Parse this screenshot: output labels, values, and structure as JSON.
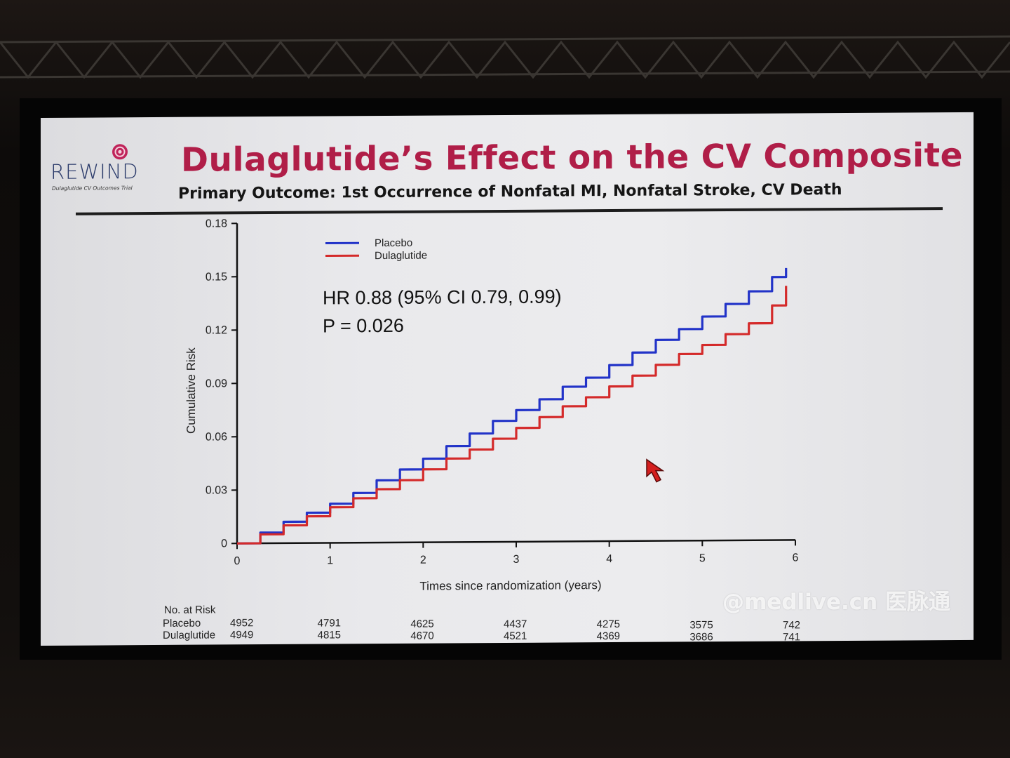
{
  "slide": {
    "logo_name": "REWIND",
    "logo_tagline": "Dulaglutide CV Outcomes Trial",
    "title": "Dulaglutide’s Effect on the CV Composite",
    "subtitle": "Primary Outcome: 1st Occurrence of Nonfatal MI, Nonfatal Stroke, CV Death",
    "stat_hr": "HR 0.88 (95% CI 0.79, 0.99)",
    "stat_p": "P = 0.026"
  },
  "chart_data": {
    "type": "line",
    "title": "",
    "xlabel": "Times since randomization (years)",
    "ylabel": "Cumulative Risk",
    "xlim": [
      0,
      6
    ],
    "ylim": [
      0,
      0.18
    ],
    "x_ticks": [
      "0",
      "1",
      "2",
      "3",
      "4",
      "5",
      "6"
    ],
    "y_ticks": [
      "0",
      "0.03",
      "0.06",
      "0.09",
      "0.12",
      "0.15",
      "0.18"
    ],
    "legend_position": "top-left",
    "series": [
      {
        "name": "Placebo",
        "color": "#2233c8",
        "x": [
          0,
          0.25,
          0.5,
          0.75,
          1,
          1.25,
          1.5,
          1.75,
          2,
          2.25,
          2.5,
          2.75,
          3,
          3.25,
          3.5,
          3.75,
          4,
          4.25,
          4.5,
          4.75,
          5,
          5.25,
          5.5,
          5.75,
          5.9
        ],
        "y": [
          0,
          0.006,
          0.012,
          0.017,
          0.022,
          0.028,
          0.035,
          0.041,
          0.047,
          0.054,
          0.061,
          0.068,
          0.074,
          0.08,
          0.087,
          0.092,
          0.099,
          0.106,
          0.113,
          0.119,
          0.126,
          0.133,
          0.14,
          0.148,
          0.153
        ]
      },
      {
        "name": "Dulaglutide",
        "color": "#d42a2a",
        "x": [
          0,
          0.25,
          0.5,
          0.75,
          1,
          1.25,
          1.5,
          1.75,
          2,
          2.25,
          2.5,
          2.75,
          3,
          3.25,
          3.5,
          3.75,
          4,
          4.25,
          4.5,
          4.75,
          5,
          5.25,
          5.5,
          5.75,
          5.9
        ],
        "y": [
          0,
          0.005,
          0.01,
          0.015,
          0.02,
          0.025,
          0.03,
          0.035,
          0.041,
          0.047,
          0.052,
          0.058,
          0.064,
          0.07,
          0.076,
          0.081,
          0.087,
          0.093,
          0.099,
          0.105,
          0.11,
          0.116,
          0.122,
          0.132,
          0.143
        ]
      }
    ]
  },
  "risk_table": {
    "header": "No. at Risk",
    "rows": [
      {
        "label": "Placebo",
        "values": [
          "4952",
          "4791",
          "4625",
          "4437",
          "4275",
          "3575",
          "742"
        ]
      },
      {
        "label": "Dulaglutide",
        "values": [
          "4949",
          "4815",
          "4670",
          "4521",
          "4369",
          "3686",
          "741"
        ]
      }
    ]
  },
  "watermark": "@medlive.cn 医脉通"
}
